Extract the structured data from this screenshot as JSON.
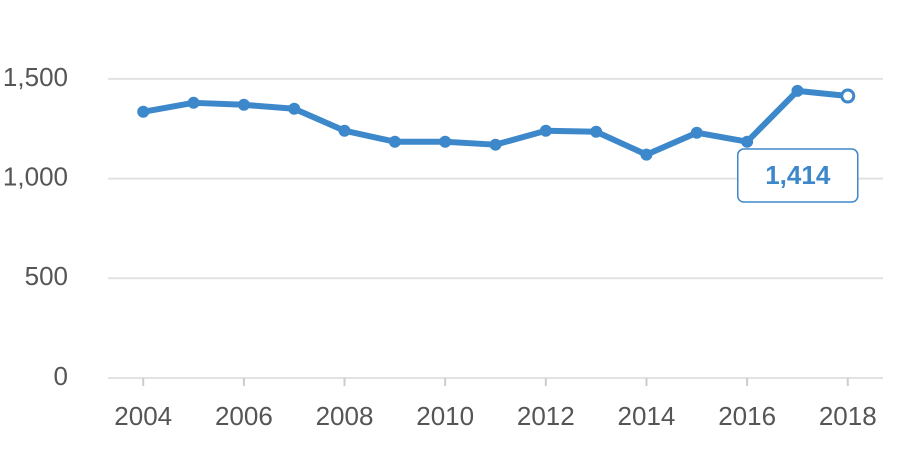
{
  "chart_data": {
    "type": "line",
    "x": [
      2004,
      2005,
      2006,
      2007,
      2008,
      2009,
      2010,
      2011,
      2012,
      2013,
      2014,
      2015,
      2016,
      2017,
      2018
    ],
    "series": [
      {
        "color": "#3d88ca",
        "values": [
          1335,
          1380,
          1370,
          1350,
          1240,
          1185,
          1185,
          1170,
          1240,
          1235,
          1120,
          1230,
          1185,
          1440,
          1414
        ],
        "value_labels": [
          null,
          null,
          null,
          null,
          null,
          null,
          null,
          null,
          null,
          null,
          null,
          null,
          null,
          null,
          "1,414"
        ]
      }
    ],
    "xlim": [
      2003.3,
      2018.7
    ],
    "xticks": [
      2004,
      2006,
      2008,
      2010,
      2012,
      2014,
      2016,
      2018
    ],
    "ylim": [
      0,
      1700
    ],
    "yticks": [
      0,
      500,
      {
        "value": 1000,
        "label": "1,000"
      },
      {
        "value": 1500,
        "label": "1,500"
      }
    ],
    "grid": true
  }
}
